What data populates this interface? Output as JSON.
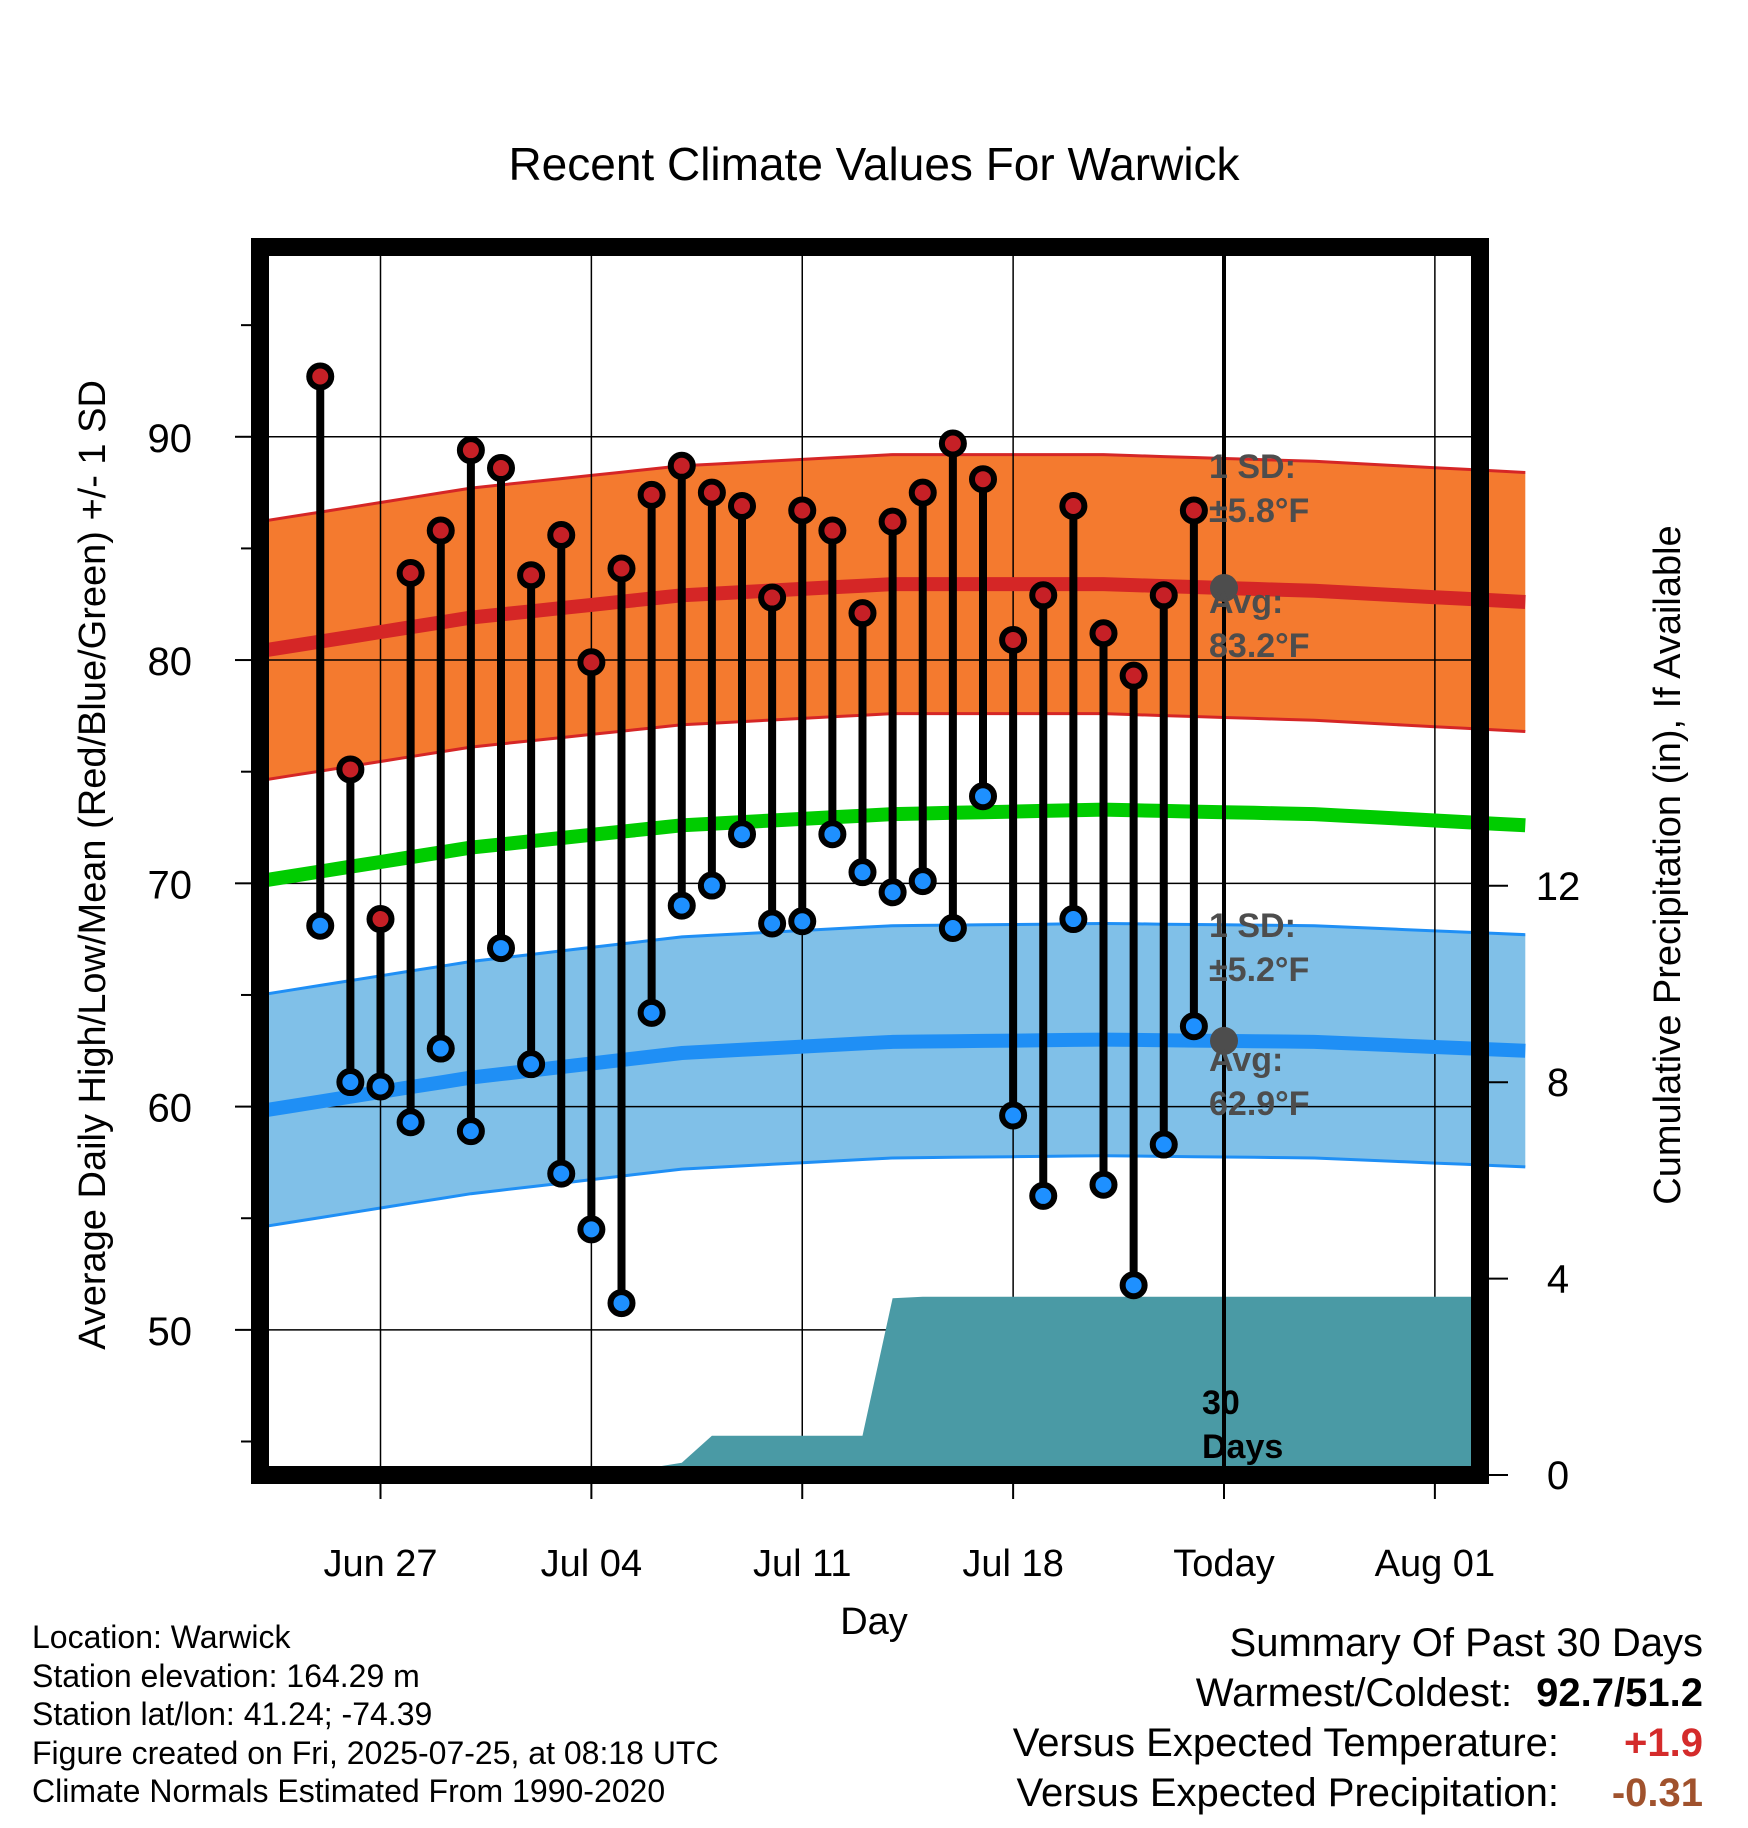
{
  "chart_data": {
    "type": "line",
    "title": "Recent Climate Values For Warwick",
    "xlabel": "Day",
    "ylabel": "Average Daily High/Low/Mean (Red/Blue/Green) +/- 1 SD",
    "y2label": "Cumulative Precipitation (in), If Available",
    "ylim": [
      43.5,
      98.5
    ],
    "y_ticks": [
      50,
      60,
      70,
      80,
      90
    ],
    "y2lim": [
      0,
      25
    ],
    "y2_ticks": [
      0,
      4,
      8,
      12
    ],
    "xlim": [
      "2025-06-23",
      "2025-08-04"
    ],
    "x_ticks": [
      "Jun 27",
      "Jul 04",
      "Jul 11",
      "Jul 18",
      "Today",
      "Aug 01"
    ],
    "x_tick_dates": [
      "2025-06-27",
      "2025-07-04",
      "2025-07-11",
      "2025-07-18",
      "2025-07-25",
      "2025-08-01"
    ],
    "grid": true,
    "today": "2025-07-25",
    "days": [
      "2025-06-25",
      "2025-06-26",
      "2025-06-27",
      "2025-06-28",
      "2025-06-29",
      "2025-06-30",
      "2025-07-01",
      "2025-07-02",
      "2025-07-03",
      "2025-07-04",
      "2025-07-05",
      "2025-07-06",
      "2025-07-07",
      "2025-07-08",
      "2025-07-09",
      "2025-07-10",
      "2025-07-11",
      "2025-07-12",
      "2025-07-13",
      "2025-07-14",
      "2025-07-15",
      "2025-07-16",
      "2025-07-17",
      "2025-07-18",
      "2025-07-19",
      "2025-07-20",
      "2025-07-21",
      "2025-07-22",
      "2025-07-23",
      "2025-07-24"
    ],
    "daily_high": [
      92.7,
      75.1,
      68.4,
      83.9,
      85.8,
      89.4,
      88.6,
      83.8,
      85.6,
      79.9,
      84.1,
      87.4,
      88.7,
      87.5,
      86.9,
      82.8,
      86.7,
      85.8,
      82.1,
      86.2,
      87.5,
      89.7,
      88.1,
      80.9,
      82.9,
      86.9,
      81.2,
      79.3,
      82.9,
      86.7
    ],
    "daily_low": [
      68.1,
      61.1,
      60.9,
      59.3,
      62.6,
      58.9,
      67.1,
      61.9,
      57.0,
      54.5,
      51.2,
      64.2,
      69.0,
      69.9,
      72.2,
      68.2,
      68.3,
      72.2,
      70.5,
      69.6,
      70.1,
      68.0,
      73.9,
      59.6,
      56.0,
      68.4,
      56.5,
      52.0,
      58.3,
      63.6
    ],
    "normal_dates": [
      "2025-06-23",
      "2025-06-30",
      "2025-07-07",
      "2025-07-14",
      "2025-07-21",
      "2025-07-28",
      "2025-08-04"
    ],
    "normal_high": [
      80.4,
      81.9,
      82.9,
      83.4,
      83.4,
      83.1,
      82.6
    ],
    "normal_mean": [
      70.1,
      71.6,
      72.6,
      73.1,
      73.3,
      73.1,
      72.6
    ],
    "normal_low": [
      59.8,
      61.3,
      62.4,
      62.9,
      63.0,
      62.9,
      62.5
    ],
    "high_sd": 5.8,
    "low_sd": 5.2,
    "precip_dates": [
      "2025-06-23",
      "2025-06-30",
      "2025-07-01",
      "2025-07-02",
      "2025-07-03",
      "2025-07-06",
      "2025-07-07",
      "2025-07-08",
      "2025-07-13",
      "2025-07-14",
      "2025-07-15",
      "2025-08-04"
    ],
    "cumulative_precip": [
      0,
      0,
      0.05,
      0.05,
      0.15,
      0.15,
      0.25,
      0.8,
      0.8,
      3.6,
      3.63,
      3.63
    ],
    "annotations": {
      "high_sd_label": [
        "1 SD:",
        "±5.8°F"
      ],
      "high_avg_label": [
        "Avg:",
        "83.2°F"
      ],
      "low_sd_label": [
        "1 SD:",
        "±5.2°F"
      ],
      "low_avg_label": [
        "Avg:",
        "62.9°F"
      ],
      "period_label": [
        "30",
        "Days"
      ]
    },
    "colors": {
      "high_band": "#f47a2f",
      "high_line": "#d52626",
      "low_band": "#80c0e8",
      "low_line": "#1f8ff5",
      "mean_line": "#00cc00",
      "precip": "#4a9aa5",
      "high_dot": "#c62026",
      "low_dot": "#1e90ff",
      "annotation": "#4d4d4d"
    }
  },
  "info": {
    "location": "Location: Warwick",
    "elevation": "Station elevation: 164.29 m",
    "latlon": "Station lat/lon: 41.24; -74.39",
    "created": "Figure created on Fri, 2025-07-25, at 08:18 UTC",
    "normals": "Climate Normals Estimated From 1990-2020"
  },
  "summary": {
    "title": "Summary Of Past 30 Days",
    "warm_cold_label": "Warmest/Coldest:",
    "warm_cold_value": "92.7/51.2",
    "temp_label": "Versus Expected Temperature:",
    "temp_value": "+1.9",
    "temp_color": "#d42b2b",
    "precip_label": "Versus Expected Precipitation:",
    "precip_value": "-0.31",
    "precip_color": "#a0522d"
  }
}
